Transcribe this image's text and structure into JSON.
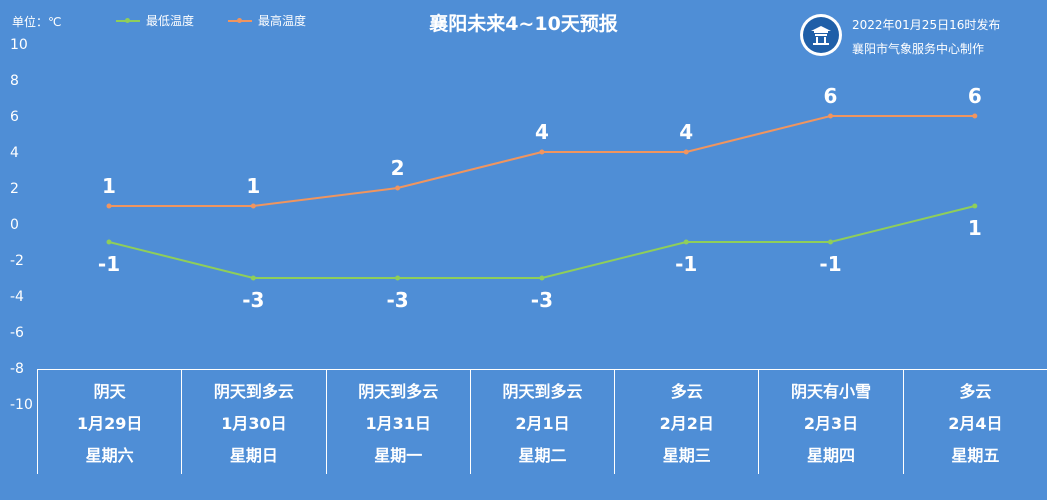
{
  "unit_label": "单位：℃",
  "legend": [
    {
      "name": "最低温度",
      "color": "#8fce5a"
    },
    {
      "name": "最高温度",
      "color": "#f0955f"
    }
  ],
  "title": "襄阳未来4~10天预报",
  "publish": {
    "line1": "2022年01月25日16时发布",
    "line2": "襄阳市气象服务中心制作"
  },
  "logo": {
    "icon": "weather-service-emblem-icon"
  },
  "days": [
    {
      "weather": "阴天",
      "date": "1月29日",
      "weekday": "星期六"
    },
    {
      "weather": "阴天到多云",
      "date": "1月30日",
      "weekday": "星期日"
    },
    {
      "weather": "阴天到多云",
      "date": "1月31日",
      "weekday": "星期一"
    },
    {
      "weather": "阴天到多云",
      "date": "2月1日",
      "weekday": "星期二"
    },
    {
      "weather": "多云",
      "date": "2月2日",
      "weekday": "星期三"
    },
    {
      "weather": "阴天有小雪",
      "date": "2月3日",
      "weekday": "星期四"
    },
    {
      "weather": "多云",
      "date": "2月4日",
      "weekday": "星期五"
    }
  ],
  "chart_data": {
    "type": "line",
    "title": "襄阳未来4~10天预报",
    "categories": [
      "1月29日",
      "1月30日",
      "1月31日",
      "2月1日",
      "2月2日",
      "2月3日",
      "2月4日"
    ],
    "series": [
      {
        "name": "最低温度",
        "color": "#8fce5a",
        "values": [
          -1,
          -3,
          -3,
          -3,
          -1,
          -1,
          1
        ]
      },
      {
        "name": "最高温度",
        "color": "#f0955f",
        "values": [
          1,
          1,
          2,
          4,
          4,
          6,
          6
        ]
      }
    ],
    "ylim": [
      -10,
      10
    ],
    "yticks": [
      "10",
      "8",
      "6",
      "4",
      "2",
      "0",
      "-2",
      "-4",
      "-6",
      "-8",
      "-10"
    ],
    "grid": false,
    "legend_position": "top-left",
    "unit": "℃"
  }
}
